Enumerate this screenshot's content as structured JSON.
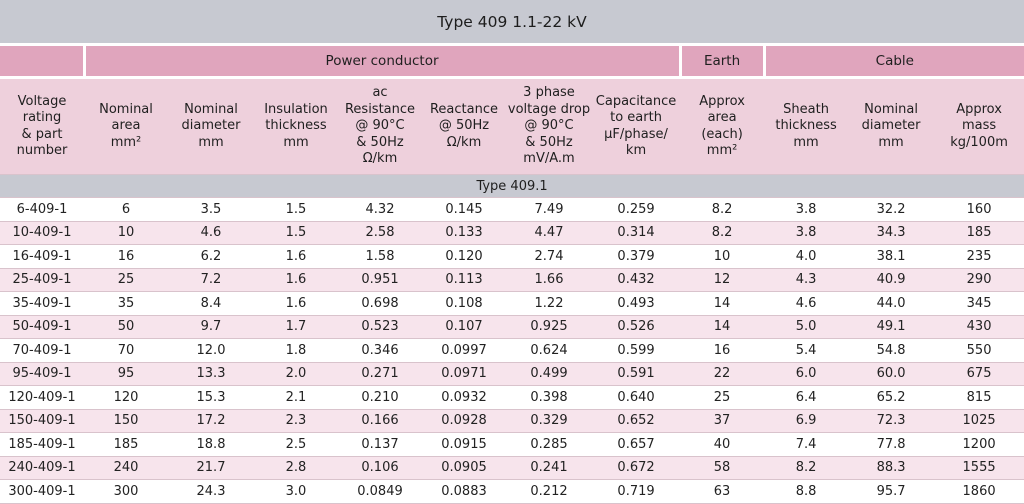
{
  "title": "Type 409  1.1-22 kV",
  "groups": {
    "power_conductor": "Power conductor",
    "earth": "Earth",
    "cable": "Cable"
  },
  "columns": [
    "Voltage\nrating\n& part\nnumber",
    "Nominal\narea\nmm²",
    "Nominal\ndiameter\nmm",
    "Insulation\nthickness\nmm",
    "ac\nResistance\n@ 90°C\n& 50Hz\nΩ/km",
    "Reactance\n@ 50Hz\nΩ/km",
    "3 phase\nvoltage drop\n@ 90°C\n& 50Hz\nmV/A.m",
    "Capacitance\nto earth\nμF/phase/\nkm",
    "Approx\narea\n(each)\nmm²",
    "Sheath\nthickness\nmm",
    "Nominal\ndiameter\nmm",
    "Approx\nmass\nkg/100m"
  ],
  "section_label": "Type 409.1",
  "rows": [
    [
      "6-409-1",
      "6",
      "3.5",
      "1.5",
      "4.32",
      "0.145",
      "7.49",
      "0.259",
      "8.2",
      "3.8",
      "32.2",
      "160"
    ],
    [
      "10-409-1",
      "10",
      "4.6",
      "1.5",
      "2.58",
      "0.133",
      "4.47",
      "0.314",
      "8.2",
      "3.8",
      "34.3",
      "185"
    ],
    [
      "16-409-1",
      "16",
      "6.2",
      "1.6",
      "1.58",
      "0.120",
      "2.74",
      "0.379",
      "10",
      "4.0",
      "38.1",
      "235"
    ],
    [
      "25-409-1",
      "25",
      "7.2",
      "1.6",
      "0.951",
      "0.113",
      "1.66",
      "0.432",
      "12",
      "4.3",
      "40.9",
      "290"
    ],
    [
      "35-409-1",
      "35",
      "8.4",
      "1.6",
      "0.698",
      "0.108",
      "1.22",
      "0.493",
      "14",
      "4.6",
      "44.0",
      "345"
    ],
    [
      "50-409-1",
      "50",
      "9.7",
      "1.7",
      "0.523",
      "0.107",
      "0.925",
      "0.526",
      "14",
      "5.0",
      "49.1",
      "430"
    ],
    [
      "70-409-1",
      "70",
      "12.0",
      "1.8",
      "0.346",
      "0.0997",
      "0.624",
      "0.599",
      "16",
      "5.4",
      "54.8",
      "550"
    ],
    [
      "95-409-1",
      "95",
      "13.3",
      "2.0",
      "0.271",
      "0.0971",
      "0.499",
      "0.591",
      "22",
      "6.0",
      "60.0",
      "675"
    ],
    [
      "120-409-1",
      "120",
      "15.3",
      "2.1",
      "0.210",
      "0.0932",
      "0.398",
      "0.640",
      "25",
      "6.4",
      "65.2",
      "815"
    ],
    [
      "150-409-1",
      "150",
      "17.2",
      "2.3",
      "0.166",
      "0.0928",
      "0.329",
      "0.652",
      "37",
      "6.9",
      "72.3",
      "1025"
    ],
    [
      "185-409-1",
      "185",
      "18.8",
      "2.5",
      "0.137",
      "0.0915",
      "0.285",
      "0.657",
      "40",
      "7.4",
      "77.8",
      "1200"
    ],
    [
      "240-409-1",
      "240",
      "21.7",
      "2.8",
      "0.106",
      "0.0905",
      "0.241",
      "0.672",
      "58",
      "8.2",
      "88.3",
      "1555"
    ],
    [
      "300-409-1",
      "300",
      "24.3",
      "3.0",
      "0.0849",
      "0.0883",
      "0.212",
      "0.719",
      "63",
      "8.8",
      "95.7",
      "1860"
    ]
  ]
}
